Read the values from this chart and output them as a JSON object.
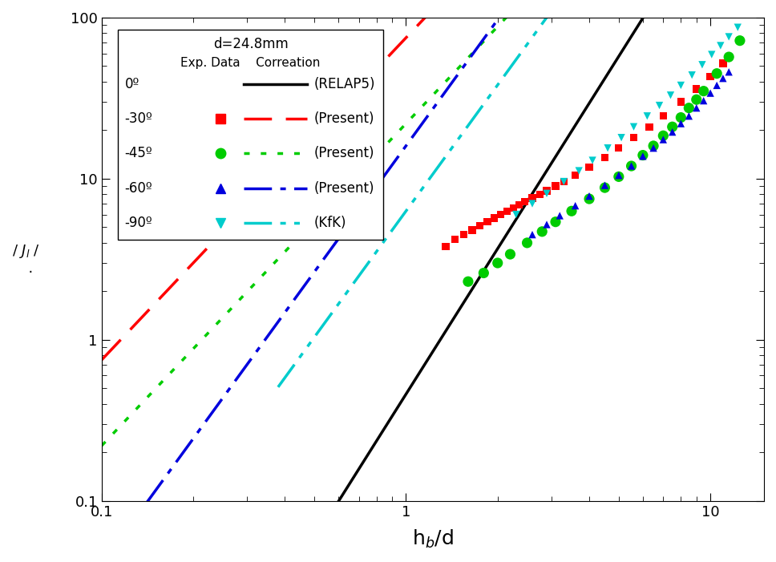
{
  "xlim": [
    0.1,
    15
  ],
  "ylim": [
    0.1,
    100
  ],
  "curves": {
    "RELAP5": {
      "coeff": 0.46,
      "power": 3.0,
      "x_start": 0.44,
      "x_end": 14,
      "color": "#000000",
      "linewidth": 2.5,
      "dashes": []
    },
    "present_30": {
      "coeff": 75.0,
      "power": 2.0,
      "x_start": 0.1,
      "x_end": 14,
      "color": "#ff0000",
      "linewidth": 2.5,
      "dashes": [
        10,
        5
      ]
    },
    "present_45": {
      "coeff": 22.0,
      "power": 2.0,
      "x_start": 0.1,
      "x_end": 14,
      "color": "#00cc00",
      "linewidth": 2.5,
      "dashes": [
        2,
        4
      ]
    },
    "present_60": {
      "coeff": 16.0,
      "power": 2.6,
      "x_start": 0.13,
      "x_end": 14,
      "color": "#0000dd",
      "linewidth": 2.5,
      "dashes": [
        10,
        3,
        2,
        3
      ]
    },
    "KfK_90": {
      "coeff": 6.3,
      "power": 2.6,
      "x_start": 0.38,
      "x_end": 14,
      "color": "#00cccc",
      "linewidth": 2.5,
      "dashes": [
        10,
        3,
        2,
        3,
        2,
        3
      ]
    }
  },
  "scatter": {
    "red_squares": {
      "color": "#ff0000",
      "marker": "s",
      "x": [
        1.35,
        1.45,
        1.55,
        1.65,
        1.75,
        1.85,
        1.95,
        2.05,
        2.15,
        2.25,
        2.35,
        2.45,
        2.6,
        2.75,
        2.9,
        3.1,
        3.3,
        3.6,
        4.0,
        4.5,
        5.0,
        5.6,
        6.3,
        7.0,
        8.0,
        9.0,
        10.0,
        11.0
      ],
      "y": [
        3.8,
        4.2,
        4.5,
        4.8,
        5.1,
        5.4,
        5.7,
        6.0,
        6.3,
        6.6,
        6.9,
        7.2,
        7.6,
        8.0,
        8.4,
        9.0,
        9.6,
        10.5,
        11.8,
        13.5,
        15.5,
        18.0,
        21.0,
        24.5,
        30.0,
        36.0,
        43.0,
        52.0
      ],
      "size": 45
    },
    "green_circles": {
      "color": "#00cc00",
      "marker": "o",
      "x": [
        1.6,
        1.8,
        2.0,
        2.2,
        2.5,
        2.8,
        3.1,
        3.5,
        4.0,
        4.5,
        5.0,
        5.5,
        6.0,
        6.5,
        7.0,
        7.5,
        8.0,
        8.5,
        9.0,
        9.5,
        10.5,
        11.5,
        12.5
      ],
      "y": [
        2.3,
        2.6,
        3.0,
        3.4,
        4.0,
        4.7,
        5.4,
        6.3,
        7.5,
        8.8,
        10.3,
        12.0,
        14.0,
        16.0,
        18.5,
        21.0,
        24.0,
        27.5,
        31.0,
        35.0,
        45.0,
        57.0,
        72.0
      ],
      "size": 90
    },
    "blue_triangles": {
      "color": "#0000dd",
      "marker": "^",
      "x": [
        2.6,
        2.9,
        3.2,
        3.6,
        4.0,
        4.5,
        5.0,
        5.5,
        6.0,
        6.5,
        7.0,
        7.5,
        8.0,
        8.5,
        9.0,
        9.5,
        10.0,
        10.5,
        11.0,
        11.5
      ],
      "y": [
        4.5,
        5.2,
        5.9,
        6.8,
        7.8,
        9.1,
        10.5,
        12.0,
        13.8,
        15.5,
        17.5,
        19.5,
        22.0,
        24.5,
        27.5,
        30.5,
        34.0,
        38.0,
        42.0,
        46.0
      ],
      "size": 45
    },
    "cyan_triangles": {
      "color": "#00cccc",
      "marker": "v",
      "x": [
        2.3,
        2.6,
        2.9,
        3.3,
        3.7,
        4.1,
        4.6,
        5.1,
        5.6,
        6.2,
        6.8,
        7.4,
        8.0,
        8.7,
        9.4,
        10.1,
        10.8,
        11.5,
        12.3
      ],
      "y": [
        6.0,
        7.0,
        8.1,
        9.6,
        11.2,
        13.0,
        15.5,
        18.0,
        21.0,
        24.5,
        28.5,
        33.0,
        38.0,
        44.0,
        51.0,
        59.0,
        67.0,
        76.0,
        87.0
      ],
      "size": 45
    }
  },
  "ylabel_text": "/ Jₗ /\n .",
  "xlabel_text": "h$_b$/d",
  "legend": {
    "title1": "d=24.8mm",
    "title2": "Exp. Data    Correation",
    "rows": [
      {
        "label_left": "0º",
        "marker": null,
        "line_color": "#000000",
        "line_dashes": [],
        "label_right": "(RELAP5)"
      },
      {
        "label_left": "-30º",
        "marker": "s",
        "line_color": "#ff0000",
        "line_dashes": [
          10,
          5
        ],
        "label_right": "(Present)"
      },
      {
        "label_left": "-45º",
        "marker": "o",
        "line_color": "#00cc00",
        "line_dashes": [
          2,
          4
        ],
        "label_right": "(Present)"
      },
      {
        "label_left": "-60º",
        "marker": "^",
        "line_color": "#0000dd",
        "line_dashes": [
          10,
          3,
          2,
          3
        ],
        "label_right": "(Present)"
      },
      {
        "label_left": "-90º",
        "marker": "v",
        "line_color": "#00cccc",
        "line_dashes": [
          10,
          3,
          2,
          3,
          2,
          3
        ],
        "label_right": "(KfK)"
      }
    ]
  }
}
